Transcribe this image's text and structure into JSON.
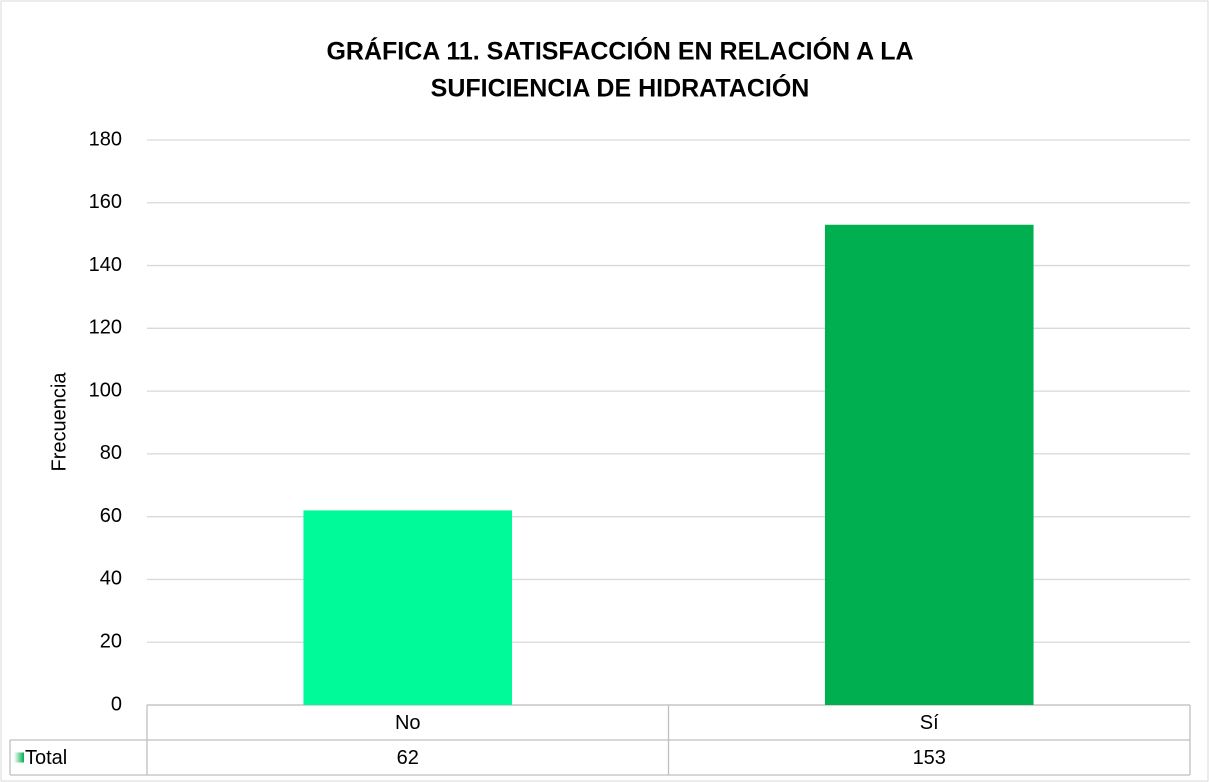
{
  "chart_data": {
    "type": "bar",
    "title": [
      "GRÁFICA 11. SATISFACCIÓN EN RELACIÓN A LA",
      "SUFICIENCIA DE HIDRATACIÓN"
    ],
    "y_label": "Frecuencia",
    "categories": [
      "No",
      "Sí"
    ],
    "series": [
      {
        "name": "Total",
        "colors": [
          "#00fa9a",
          "#00b050"
        ],
        "values": [
          62,
          153
        ]
      }
    ],
    "ylim": [
      0,
      180
    ],
    "yticks": [
      0,
      20,
      40,
      60,
      80,
      100,
      120,
      140,
      160,
      180
    ],
    "grid": true
  }
}
